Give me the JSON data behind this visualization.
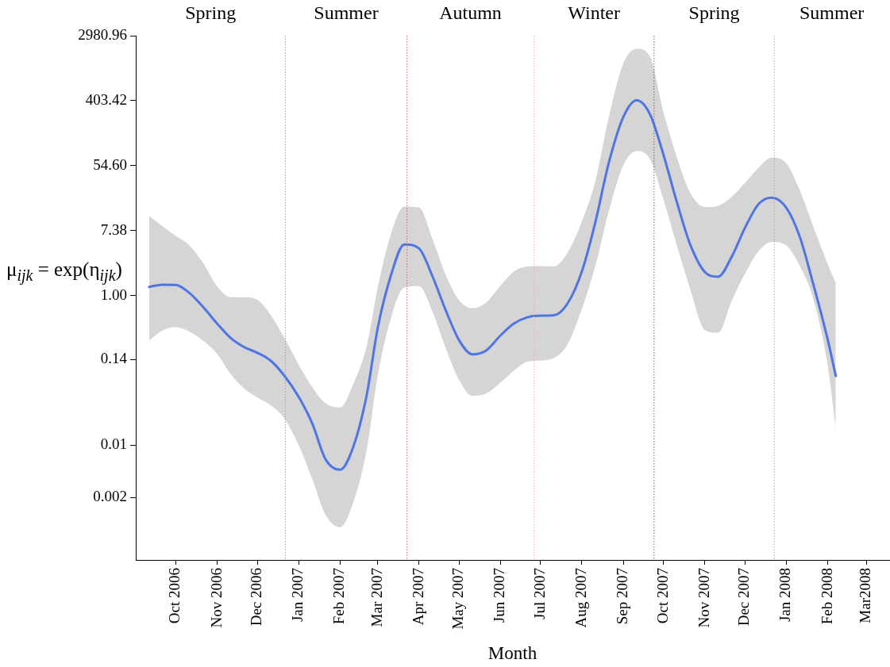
{
  "chart_data": {
    "type": "line",
    "xlabel": "Month",
    "ylabel": "μ$_{ijk}$ = exp(η$_{ijk}$)",
    "x": [
      "2006-09-11",
      "2006-09-21",
      "2006-10-01",
      "2006-10-11",
      "2006-10-21",
      "2006-11-01",
      "2006-11-11",
      "2006-11-21",
      "2006-12-01",
      "2006-12-11",
      "2006-12-21",
      "2007-01-01",
      "2007-01-11",
      "2007-01-21",
      "2007-02-01",
      "2007-02-11",
      "2007-02-21",
      "2007-03-01",
      "2007-03-11",
      "2007-03-21",
      "2007-04-01",
      "2007-04-11",
      "2007-04-21",
      "2007-05-01",
      "2007-05-11",
      "2007-05-21",
      "2007-06-01",
      "2007-06-11",
      "2007-06-21",
      "2007-07-01",
      "2007-07-11",
      "2007-07-21",
      "2007-08-01",
      "2007-08-11",
      "2007-08-21",
      "2007-09-01",
      "2007-09-11",
      "2007-09-21",
      "2007-10-01",
      "2007-10-11",
      "2007-10-21",
      "2007-11-01",
      "2007-11-11",
      "2007-11-21",
      "2007-12-01",
      "2007-12-11",
      "2007-12-21",
      "2008-01-01",
      "2008-01-11",
      "2008-01-21",
      "2008-02-01",
      "2008-02-07"
    ],
    "series": [
      {
        "color": "#4f74e3",
        "values": [
          1.31,
          1.4,
          1.39,
          1.09,
          0.717,
          0.421,
          0.272,
          0.206,
          0.172,
          0.135,
          0.086,
          0.0443,
          0.0198,
          0.00652,
          0.00471,
          0.00971,
          0.0481,
          0.359,
          1.86,
          4.84,
          4.28,
          1.83,
          0.639,
          0.254,
          0.164,
          0.183,
          0.293,
          0.422,
          0.513,
          0.539,
          0.546,
          0.773,
          2.12,
          9.53,
          58.7,
          245,
          408,
          264,
          76.7,
          17.9,
          4.84,
          2.07,
          1.79,
          3.28,
          8.04,
          16.6,
          20.4,
          14.9,
          6.16,
          1.46,
          0.257,
          0.0843
        ],
        "lower": [
          0.251,
          0.342,
          0.379,
          0.331,
          0.253,
          0.166,
          0.0896,
          0.0575,
          0.0437,
          0.0342,
          0.0232,
          0.01,
          0.00357,
          0.00118,
          0.000803,
          0.00176,
          0.00896,
          0.0823,
          0.501,
          1.28,
          1.34,
          0.616,
          0.2,
          0.0747,
          0.0456,
          0.0489,
          0.0688,
          0.0988,
          0.131,
          0.136,
          0.147,
          0.22,
          0.669,
          2.48,
          13.2,
          55.7,
          85.7,
          66.3,
          19.3,
          4.7,
          1.23,
          0.346,
          0.319,
          0.844,
          1.95,
          3.89,
          5.24,
          4.67,
          2.51,
          0.93,
          0.116,
          0.0166
        ],
        "upper": [
          11.6,
          8.44,
          6.27,
          4.72,
          2.81,
          1.32,
          0.953,
          0.953,
          0.877,
          0.551,
          0.277,
          0.119,
          0.0601,
          0.0365,
          0.032,
          0.0669,
          0.217,
          1.26,
          6.62,
          15.5,
          15.1,
          5.78,
          1.9,
          0.869,
          0.679,
          0.798,
          1.36,
          2.09,
          2.45,
          2.48,
          2.46,
          3.68,
          9.86,
          33.8,
          238,
          1270,
          1995,
          1550,
          284,
          71.3,
          23.8,
          15.3,
          15.9,
          20.9,
          32.0,
          50.8,
          69.9,
          58.7,
          25.7,
          8.53,
          2.64,
          1.47
        ]
      }
    ],
    "xlim": [
      "2006-09-01",
      "2008-03-18"
    ],
    "xticks": [
      {
        "value": "2006-10",
        "label": "Oct 2006"
      },
      {
        "value": "2006-11",
        "label": "Nov 2006"
      },
      {
        "value": "2006-12",
        "label": "Dec 2006"
      },
      {
        "value": "2007-01",
        "label": "Jan 2007"
      },
      {
        "value": "2007-02",
        "label": "Feb 2007"
      },
      {
        "value": "2007-03",
        "label": "Mar 2007"
      },
      {
        "value": "2007-04",
        "label": "Apr 2007"
      },
      {
        "value": "2007-05",
        "label": "May 2007"
      },
      {
        "value": "2007-06",
        "label": "Jun 2007"
      },
      {
        "value": "2007-07",
        "label": "Jul 2007"
      },
      {
        "value": "2007-08",
        "label": "Aug 2007"
      },
      {
        "value": "2007-09",
        "label": "Sep 2007"
      },
      {
        "value": "2007-10",
        "label": "Oct 2007"
      },
      {
        "value": "2007-11",
        "label": "Nov 2007"
      },
      {
        "value": "2007-12",
        "label": "Dec 2007"
      },
      {
        "value": "2008-01",
        "label": "Jan 2008"
      },
      {
        "value": "2008-02",
        "label": "Feb 2008"
      },
      {
        "value": "2008-03",
        "label": "Mar2008"
      }
    ],
    "ylim": [
      0.000293,
      2980.96
    ],
    "yticks": [
      0.002,
      0.01,
      0.14,
      {
        "value": 1,
        "label": "1.00"
      },
      7.38,
      {
        "value": 54.6,
        "label": "54.60"
      },
      403.42,
      2980.96
    ],
    "log": true,
    "grid": false,
    "legend": false,
    "marker": "none",
    "ref_lines": [
      {
        "axis": "x",
        "value": "2006-12-22",
        "color": "#d98c8c",
        "line_style": "dotted"
      },
      {
        "axis": "x",
        "value": "2007-03-23",
        "color": "#c87070",
        "line_style": "dotted"
      },
      {
        "axis": "x",
        "value": "2007-06-26",
        "color": "#e3b8b8",
        "line_style": "dotted"
      },
      {
        "axis": "x",
        "value": "2007-09-24",
        "color": "#b04848",
        "line_style": "dotted"
      },
      {
        "axis": "x",
        "value": "2007-12-23",
        "color": "#dc9a9a",
        "line_style": "dotted"
      }
    ],
    "annotations": [
      "Spring",
      "Summer",
      "Autumn",
      "Winter",
      "Spring",
      "Summer"
    ]
  }
}
